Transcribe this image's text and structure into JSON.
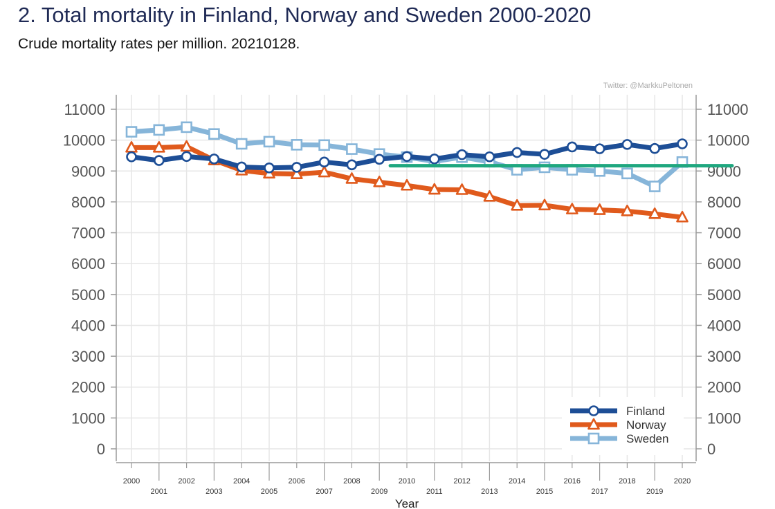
{
  "header": {
    "title": "2. Total mortality in Finland, Norway and Sweden 2000-2020",
    "subtitle": "Crude mortality rates per million. 20210128."
  },
  "chart_data": {
    "type": "line",
    "title": "2. Total mortality in Finland, Norway and Sweden 2000-2020",
    "subtitle": "Crude mortality rates per million. 20210128.",
    "xlabel": "Year",
    "ylabel": "",
    "credit": "Twitter: @MarkkuPeltonen",
    "x": [
      2000,
      2001,
      2002,
      2003,
      2004,
      2005,
      2006,
      2007,
      2008,
      2009,
      2010,
      2011,
      2012,
      2013,
      2014,
      2015,
      2016,
      2017,
      2018,
      2019,
      2020
    ],
    "ylim": [
      0,
      11000
    ],
    "yticks": [
      0,
      1000,
      2000,
      3000,
      4000,
      5000,
      6000,
      7000,
      8000,
      9000,
      10000,
      11000
    ],
    "grid": true,
    "legend_position": "bottom-right",
    "series": [
      {
        "name": "Finland",
        "color": "#1d4e96",
        "marker": "circle",
        "values": [
          9460,
          9340,
          9470,
          9390,
          9130,
          9100,
          9120,
          9290,
          9200,
          9380,
          9470,
          9390,
          9530,
          9460,
          9600,
          9540,
          9780,
          9720,
          9860,
          9730,
          9880
        ]
      },
      {
        "name": "Norway",
        "color": "#e05a1c",
        "marker": "triangle",
        "values": [
          9760,
          9760,
          9790,
          9350,
          9020,
          8920,
          8900,
          8960,
          8750,
          8640,
          8530,
          8400,
          8390,
          8170,
          7880,
          7890,
          7760,
          7740,
          7700,
          7610,
          7500
        ]
      },
      {
        "name": "Sweden",
        "color": "#86b5d9",
        "marker": "square",
        "values": [
          10270,
          10330,
          10420,
          10200,
          9880,
          9950,
          9850,
          9840,
          9710,
          9550,
          9450,
          9310,
          9450,
          9300,
          9040,
          9120,
          9040,
          9000,
          8920,
          8500,
          9290
        ]
      }
    ],
    "annotations": [
      {
        "type": "reference-line",
        "color": "#1fa77f",
        "y": 9170,
        "x_from": 2009.4,
        "x_to": "beyond-axis"
      }
    ]
  }
}
